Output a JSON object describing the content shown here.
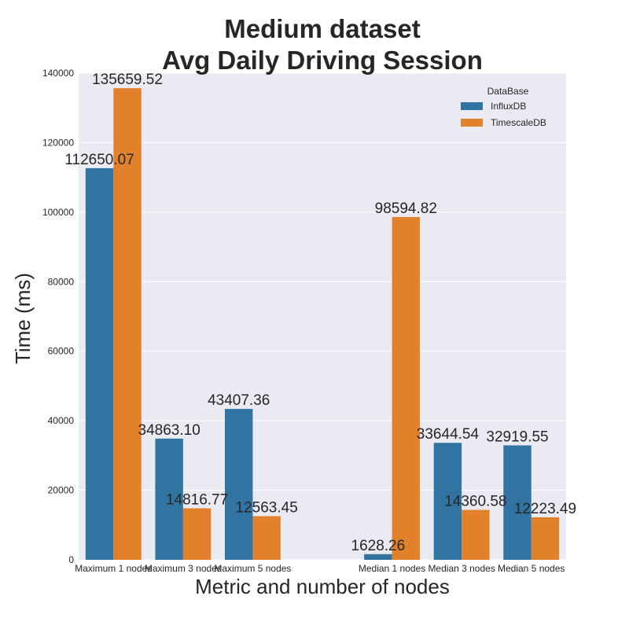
{
  "chart_data": {
    "type": "bar",
    "title": [
      "Medium dataset",
      "Avg Daily Driving Session"
    ],
    "xlabel": "Metric and number of nodes",
    "ylabel": "Time (ms)",
    "categories": [
      "Maximum 1 nodes",
      "Maximum 3 nodes",
      "Maximum 5 nodes",
      "",
      "Median 1 nodes",
      "Median 3 nodes",
      "Median 5 nodes"
    ],
    "series": [
      {
        "name": "InfluxDB",
        "color": "#3274a1",
        "values": [
          112650.07,
          34863.1,
          43407.36,
          null,
          1628.26,
          33644.54,
          32919.55
        ]
      },
      {
        "name": "TimescaleDB",
        "color": "#e1812c",
        "values": [
          135659.52,
          14816.77,
          12563.45,
          null,
          98594.82,
          14360.58,
          12223.49
        ]
      }
    ],
    "value_labels": [
      [
        "112650.07",
        "34863.10",
        "43407.36",
        null,
        "1628.26",
        "33644.54",
        "32919.55"
      ],
      [
        "135659.52",
        "14816.77",
        "12563.45",
        null,
        "98594.82",
        "14360.58",
        "12223.49"
      ]
    ],
    "ylim": [
      0,
      140000
    ],
    "yticks": [
      0,
      20000,
      40000,
      60000,
      80000,
      100000,
      120000,
      140000
    ],
    "ytick_labels": [
      "0",
      "20000",
      "40000",
      "60000",
      "80000",
      "100000",
      "120000",
      "140000"
    ],
    "grid": true,
    "legend": {
      "title": "DataBase",
      "placement": "top-right"
    },
    "background": "#eaeaf2"
  }
}
